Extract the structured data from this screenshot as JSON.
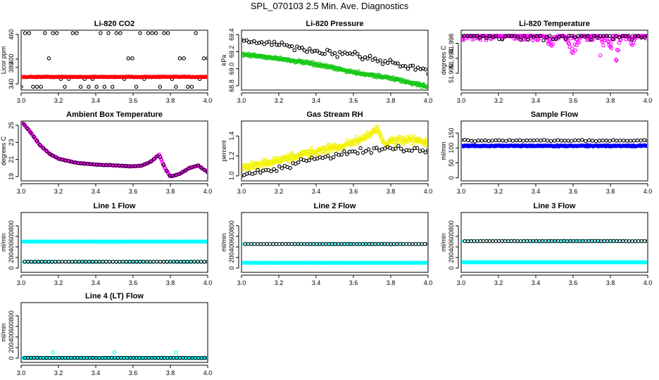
{
  "page_title": "SPL_070103  2.5 Min. Ave. Diagnostics",
  "colors": {
    "black": "#000000",
    "red": "#ff0000",
    "green": "#19c919",
    "magenta": "#ff00ff",
    "yellow": "#f2f200",
    "blue": "#0000ff",
    "cyan": "#00ffff"
  },
  "chart_data": [
    {
      "id": "co2",
      "type": "scatter",
      "title": "Li-820 CO2",
      "ylabel": "Licor ppm",
      "xlim": [
        3.0,
        4.0
      ],
      "ylim": [
        325,
        470
      ],
      "x_ticks": [
        "3.0",
        "3.2",
        "3.4",
        "3.6",
        "3.8",
        "4.0"
      ],
      "x_tick_values": [
        3.0,
        3.2,
        3.4,
        3.6,
        3.8,
        4.0
      ],
      "y_ticks": [
        "340",
        "380",
        "400",
        "460"
      ],
      "y_tick_values": [
        340,
        380,
        400,
        460
      ],
      "series": [
        {
          "name": "co2-black",
          "color": "#000000",
          "marker": "circle",
          "pattern": "levels",
          "levels": [
            333,
            352,
            402,
            463
          ],
          "n": 48,
          "x_range": [
            3.0,
            4.0
          ],
          "spread": 0
        },
        {
          "name": "co2-red",
          "color": "#ff0000",
          "marker": "circle",
          "pattern": "flat",
          "y": 357,
          "noise": 1.2,
          "n": 220,
          "x_range": [
            3.0,
            4.0
          ]
        }
      ]
    },
    {
      "id": "pressure",
      "type": "scatter",
      "title": "Li-820 Pressure",
      "ylabel": "kPa",
      "xlim": [
        3.0,
        4.0
      ],
      "ylim": [
        68.75,
        69.45
      ],
      "x_ticks": [
        "3.0",
        "3.2",
        "3.4",
        "3.6",
        "3.8",
        "4.0"
      ],
      "x_tick_values": [
        3.0,
        3.2,
        3.4,
        3.6,
        3.8,
        4.0
      ],
      "y_ticks": [
        "68.8",
        "69.0",
        "69.2",
        "69.4"
      ],
      "y_tick_values": [
        68.8,
        69.0,
        69.2,
        69.4
      ],
      "series": [
        {
          "name": "pressure-green",
          "color": "#19c919",
          "marker": "circle",
          "pattern": "trend",
          "x_range": [
            3.0,
            4.0
          ],
          "points": [
            [
              3.0,
              69.17
            ],
            [
              3.2,
              69.12
            ],
            [
              3.4,
              69.05
            ],
            [
              3.6,
              68.96
            ],
            [
              3.8,
              68.89
            ],
            [
              4.0,
              68.79
            ]
          ],
          "noise": 0.025,
          "n": 320
        },
        {
          "name": "pressure-black",
          "color": "#000000",
          "marker": "circle",
          "pattern": "trend",
          "x_range": [
            3.0,
            4.0
          ],
          "points": [
            [
              3.0,
              69.34
            ],
            [
              3.2,
              69.28
            ],
            [
              3.4,
              69.2
            ],
            [
              3.6,
              69.15
            ],
            [
              3.8,
              69.08
            ],
            [
              4.0,
              68.97
            ]
          ],
          "noise": 0.06,
          "n": 75
        }
      ]
    },
    {
      "id": "licor-temp",
      "type": "scatter",
      "title": "Li-820 Temperature",
      "ylabel": "degrees C",
      "xlim": [
        3.0,
        4.0
      ],
      "ylim": [
        51.9855,
        52.0015
      ],
      "x_ticks": [
        "3.0",
        "3.2",
        "3.4",
        "3.6",
        "3.8",
        "4.0"
      ],
      "x_tick_values": [
        3.0,
        3.2,
        3.4,
        3.6,
        3.8,
        4.0
      ],
      "y_ticks": [
        "51.990",
        "51.994",
        "51.998"
      ],
      "y_tick_values": [
        51.99,
        51.994,
        51.998
      ],
      "series": [
        {
          "name": "licor-temp-magenta",
          "color": "#ff00ff",
          "marker": "circle",
          "pattern": "dips",
          "x_range": [
            3.0,
            4.0
          ],
          "top": 52.0,
          "n": 300,
          "dips": [
            [
              3.48,
              0.04,
              51.9965
            ],
            [
              3.6,
              0.05,
              51.9945
            ],
            [
              3.75,
              0.02,
              51.993
            ],
            [
              3.82,
              0.04,
              51.9895
            ],
            [
              3.92,
              0.03,
              51.9965
            ]
          ]
        },
        {
          "name": "licor-temp-black",
          "color": "#000000",
          "marker": "circle",
          "pattern": "dips",
          "x_range": [
            3.0,
            4.0
          ],
          "top": 52.0,
          "n": 60,
          "dips": [
            [
              3.5,
              0.05,
              51.998
            ],
            [
              3.63,
              0.04,
              51.9955
            ],
            [
              3.83,
              0.03,
              51.992
            ]
          ]
        }
      ]
    },
    {
      "id": "ambient-temp",
      "type": "scatter",
      "title": "Ambient Box Temperature",
      "ylabel": "degrees C",
      "xlim": [
        3.0,
        4.0
      ],
      "ylim": [
        18.5,
        25.5
      ],
      "x_ticks": [
        "3.0",
        "3.2",
        "3.4",
        "3.6",
        "3.8",
        "4.0"
      ],
      "x_tick_values": [
        3.0,
        3.2,
        3.4,
        3.6,
        3.8,
        4.0
      ],
      "y_ticks": [
        "19",
        "21",
        "23",
        "25"
      ],
      "y_tick_values": [
        19,
        21,
        23,
        25
      ],
      "series": [
        {
          "name": "ambient-magenta",
          "color": "#ff00ff",
          "marker": "circle",
          "pattern": "trend",
          "x_range": [
            3.0,
            4.0
          ],
          "points": [
            [
              3.0,
              25.5
            ],
            [
              3.05,
              24.2
            ],
            [
              3.1,
              22.7
            ],
            [
              3.15,
              21.7
            ],
            [
              3.2,
              21.1
            ],
            [
              3.3,
              20.6
            ],
            [
              3.4,
              20.4
            ],
            [
              3.5,
              20.3
            ],
            [
              3.6,
              20.2
            ],
            [
              3.65,
              20.3
            ],
            [
              3.7,
              20.8
            ],
            [
              3.74,
              21.6
            ],
            [
              3.77,
              20.0
            ],
            [
              3.8,
              19.0
            ],
            [
              3.85,
              19.3
            ],
            [
              3.9,
              20.0
            ],
            [
              3.95,
              20.3
            ],
            [
              4.0,
              19.5
            ]
          ],
          "noise": 0.06,
          "n": 260
        },
        {
          "name": "ambient-black",
          "color": "#000000",
          "marker": "circle",
          "pattern": "trend",
          "x_range": [
            3.0,
            4.0
          ],
          "points": [
            [
              3.0,
              25.5
            ],
            [
              3.05,
              24.2
            ],
            [
              3.1,
              22.7
            ],
            [
              3.15,
              21.7
            ],
            [
              3.2,
              21.1
            ],
            [
              3.3,
              20.6
            ],
            [
              3.4,
              20.4
            ],
            [
              3.5,
              20.3
            ],
            [
              3.6,
              20.2
            ],
            [
              3.65,
              20.3
            ],
            [
              3.7,
              20.8
            ],
            [
              3.74,
              21.6
            ],
            [
              3.77,
              20.0
            ],
            [
              3.8,
              19.0
            ],
            [
              3.85,
              19.3
            ],
            [
              3.9,
              20.0
            ],
            [
              3.95,
              20.3
            ],
            [
              4.0,
              19.5
            ]
          ],
          "noise": 0.05,
          "n": 60
        }
      ]
    },
    {
      "id": "gas-rh",
      "type": "scatter",
      "title": "Gas Stream RH",
      "ylabel": "percent",
      "xlim": [
        3.0,
        4.0
      ],
      "ylim": [
        0.95,
        1.55
      ],
      "x_ticks": [
        "3.0",
        "3.2",
        "3.4",
        "3.6",
        "3.8",
        "4.0"
      ],
      "x_tick_values": [
        3.0,
        3.2,
        3.4,
        3.6,
        3.8,
        4.0
      ],
      "y_ticks": [
        "1.0",
        "1.2",
        "1.4"
      ],
      "y_tick_values": [
        1.0,
        1.2,
        1.4
      ],
      "series": [
        {
          "name": "rh-yellow",
          "color": "#f2f200",
          "marker": "circle",
          "pattern": "trend",
          "x_range": [
            3.0,
            4.0
          ],
          "points": [
            [
              3.0,
              1.08
            ],
            [
              3.2,
              1.15
            ],
            [
              3.4,
              1.25
            ],
            [
              3.6,
              1.33
            ],
            [
              3.73,
              1.47
            ],
            [
              3.76,
              1.33
            ],
            [
              3.9,
              1.37
            ],
            [
              4.0,
              1.33
            ]
          ],
          "noise": 0.06,
          "n": 330
        },
        {
          "name": "rh-black",
          "color": "#000000",
          "marker": "circle",
          "pattern": "trend",
          "x_range": [
            3.0,
            4.0
          ],
          "points": [
            [
              3.0,
              1.0
            ],
            [
              3.2,
              1.08
            ],
            [
              3.4,
              1.18
            ],
            [
              3.6,
              1.24
            ],
            [
              3.8,
              1.28
            ],
            [
              4.0,
              1.25
            ]
          ],
          "noise": 0.04,
          "n": 70
        }
      ]
    },
    {
      "id": "sample-flow",
      "type": "scatter",
      "title": "Sample Flow",
      "ylabel": "ml/min",
      "xlim": [
        3.0,
        4.0
      ],
      "ylim": [
        -10,
        190
      ],
      "x_ticks": [
        "3.0",
        "3.2",
        "3.4",
        "3.6",
        "3.8",
        "4.0"
      ],
      "x_tick_values": [
        3.0,
        3.2,
        3.4,
        3.6,
        3.8,
        4.0
      ],
      "y_ticks": [
        "0",
        "50",
        "100",
        "150"
      ],
      "y_tick_values": [
        0,
        50,
        100,
        150
      ],
      "series": [
        {
          "name": "sample-blue",
          "color": "#0000ff",
          "marker": "circle",
          "pattern": "flat",
          "y": 107,
          "noise": 3,
          "n": 320,
          "x_range": [
            3.0,
            4.0
          ]
        },
        {
          "name": "sample-black",
          "color": "#000000",
          "marker": "circle",
          "pattern": "flat",
          "y": 125,
          "noise": 3,
          "n": 55,
          "x_range": [
            3.0,
            4.0
          ]
        }
      ]
    },
    {
      "id": "line1-flow",
      "type": "scatter",
      "title": "Line 1 Flow",
      "ylabel": "ml/min",
      "xlim": [
        3.0,
        4.0
      ],
      "ylim": [
        -80,
        1050
      ],
      "x_ticks": [
        "3.0",
        "3.2",
        "3.4",
        "3.6",
        "3.8",
        "4.0"
      ],
      "x_tick_values": [
        3.0,
        3.2,
        3.4,
        3.6,
        3.8,
        4.0
      ],
      "y_ticks": [
        "0",
        "200",
        "400",
        "600",
        "800"
      ],
      "y_tick_values": [
        0,
        200,
        400,
        600,
        800
      ],
      "series": [
        {
          "name": "line1-cyan-high",
          "color": "#00ffff",
          "marker": "circle",
          "pattern": "flat",
          "y": 500,
          "noise": 3,
          "n": 260,
          "x_range": [
            3.0,
            4.0
          ]
        },
        {
          "name": "line1-cyan-low",
          "color": "#00ffff",
          "marker": "circle",
          "pattern": "flat",
          "y": 120,
          "noise": 2,
          "n": 60,
          "x_range": [
            3.0,
            4.0
          ]
        },
        {
          "name": "line1-black",
          "color": "#000000",
          "marker": "circle",
          "pattern": "flat",
          "y": 120,
          "noise": 2,
          "n": 55,
          "x_range": [
            3.02,
            4.0
          ]
        }
      ]
    },
    {
      "id": "line2-flow",
      "type": "scatter",
      "title": "Line 2 Flow",
      "ylabel": "ml/min",
      "xlim": [
        3.0,
        4.0
      ],
      "ylim": [
        -80,
        1050
      ],
      "x_ticks": [
        "3.0",
        "3.2",
        "3.4",
        "3.6",
        "3.8",
        "4.0"
      ],
      "x_tick_values": [
        3.0,
        3.2,
        3.4,
        3.6,
        3.8,
        4.0
      ],
      "y_ticks": [
        "0",
        "200",
        "400",
        "600",
        "800"
      ],
      "y_tick_values": [
        0,
        200,
        400,
        600,
        800
      ],
      "series": [
        {
          "name": "line2-cyan-low",
          "color": "#00ffff",
          "marker": "circle",
          "pattern": "flat",
          "y": 100,
          "noise": 3,
          "n": 260,
          "x_range": [
            3.0,
            4.0
          ]
        },
        {
          "name": "line2-cyan-high",
          "color": "#00ffff",
          "marker": "circle",
          "pattern": "flat",
          "y": 455,
          "noise": 3,
          "n": 60,
          "x_range": [
            3.0,
            4.0
          ]
        },
        {
          "name": "line2-black",
          "color": "#000000",
          "marker": "circle",
          "pattern": "flat",
          "y": 455,
          "noise": 3,
          "n": 60,
          "x_range": [
            3.02,
            4.0
          ]
        }
      ]
    },
    {
      "id": "line3-flow",
      "type": "scatter",
      "title": "Line 3 Flow",
      "ylabel": "ml/min",
      "xlim": [
        3.0,
        4.0
      ],
      "ylim": [
        -80,
        1050
      ],
      "x_ticks": [
        "3.0",
        "3.2",
        "3.4",
        "3.6",
        "3.8",
        "4.0"
      ],
      "x_tick_values": [
        3.0,
        3.2,
        3.4,
        3.6,
        3.8,
        4.0
      ],
      "y_ticks": [
        "0",
        "200",
        "400",
        "600",
        "800"
      ],
      "y_tick_values": [
        0,
        200,
        400,
        600,
        800
      ],
      "series": [
        {
          "name": "line3-cyan-low",
          "color": "#00ffff",
          "marker": "circle",
          "pattern": "flat",
          "y": 110,
          "noise": 3,
          "n": 260,
          "x_range": [
            3.0,
            4.0
          ]
        },
        {
          "name": "line3-cyan-high",
          "color": "#00ffff",
          "marker": "circle",
          "pattern": "flat",
          "y": 510,
          "noise": 3,
          "n": 60,
          "x_range": [
            3.0,
            4.0
          ]
        },
        {
          "name": "line3-black",
          "color": "#000000",
          "marker": "circle",
          "pattern": "flat",
          "y": 510,
          "noise": 3,
          "n": 60,
          "x_range": [
            3.02,
            4.0
          ]
        }
      ]
    },
    {
      "id": "line4-flow",
      "type": "scatter",
      "title": "Line 4 (LT) Flow",
      "ylabel": "ml/min",
      "xlim": [
        3.0,
        4.0
      ],
      "ylim": [
        -80,
        1050
      ],
      "x_ticks": [
        "3.0",
        "3.2",
        "3.4",
        "3.6",
        "3.8",
        "4.0"
      ],
      "x_tick_values": [
        3.0,
        3.2,
        3.4,
        3.6,
        3.8,
        4.0
      ],
      "y_ticks": [
        "0",
        "200",
        "400",
        "600",
        "800"
      ],
      "y_tick_values": [
        0,
        200,
        400,
        600,
        800
      ],
      "series": [
        {
          "name": "line4-cyan",
          "color": "#00ffff",
          "marker": "circle",
          "pattern": "flat",
          "y": 5,
          "noise": 2,
          "n": 240,
          "x_range": [
            3.0,
            4.0
          ]
        },
        {
          "name": "line4-cyan-spikes",
          "color": "#00ffff",
          "marker": "circle",
          "pattern": "points",
          "x": [
            3.17,
            3.5,
            3.83
          ],
          "y": [
            110,
            110,
            110
          ]
        },
        {
          "name": "line4-black",
          "color": "#000000",
          "marker": "circle",
          "pattern": "flat",
          "y": 5,
          "noise": 2,
          "n": 60,
          "x_range": [
            3.02,
            4.0
          ]
        }
      ]
    }
  ]
}
